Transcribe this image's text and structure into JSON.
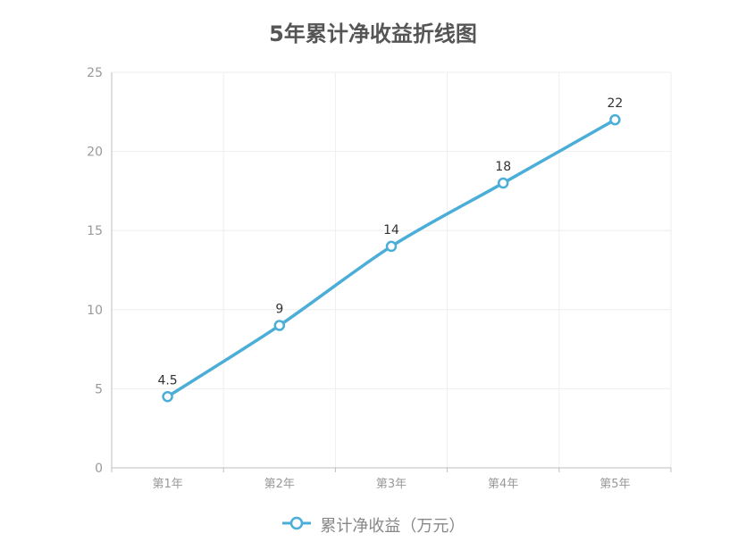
{
  "chart_data": {
    "type": "line",
    "title": "5年累计净收益折线图",
    "categories": [
      "第1年",
      "第2年",
      "第3年",
      "第4年",
      "第5年"
    ],
    "series": [
      {
        "name": "累计净收益（万元）",
        "values": [
          4.5,
          9,
          14,
          18,
          22
        ],
        "color": "#4aaed8"
      }
    ],
    "ylim": [
      0,
      25
    ],
    "yticks": [
      0,
      5,
      10,
      15,
      20,
      25
    ],
    "grid": true,
    "legend_position": "bottom-center",
    "data_labels": [
      "4.5",
      "9",
      "14",
      "18",
      "22"
    ]
  }
}
